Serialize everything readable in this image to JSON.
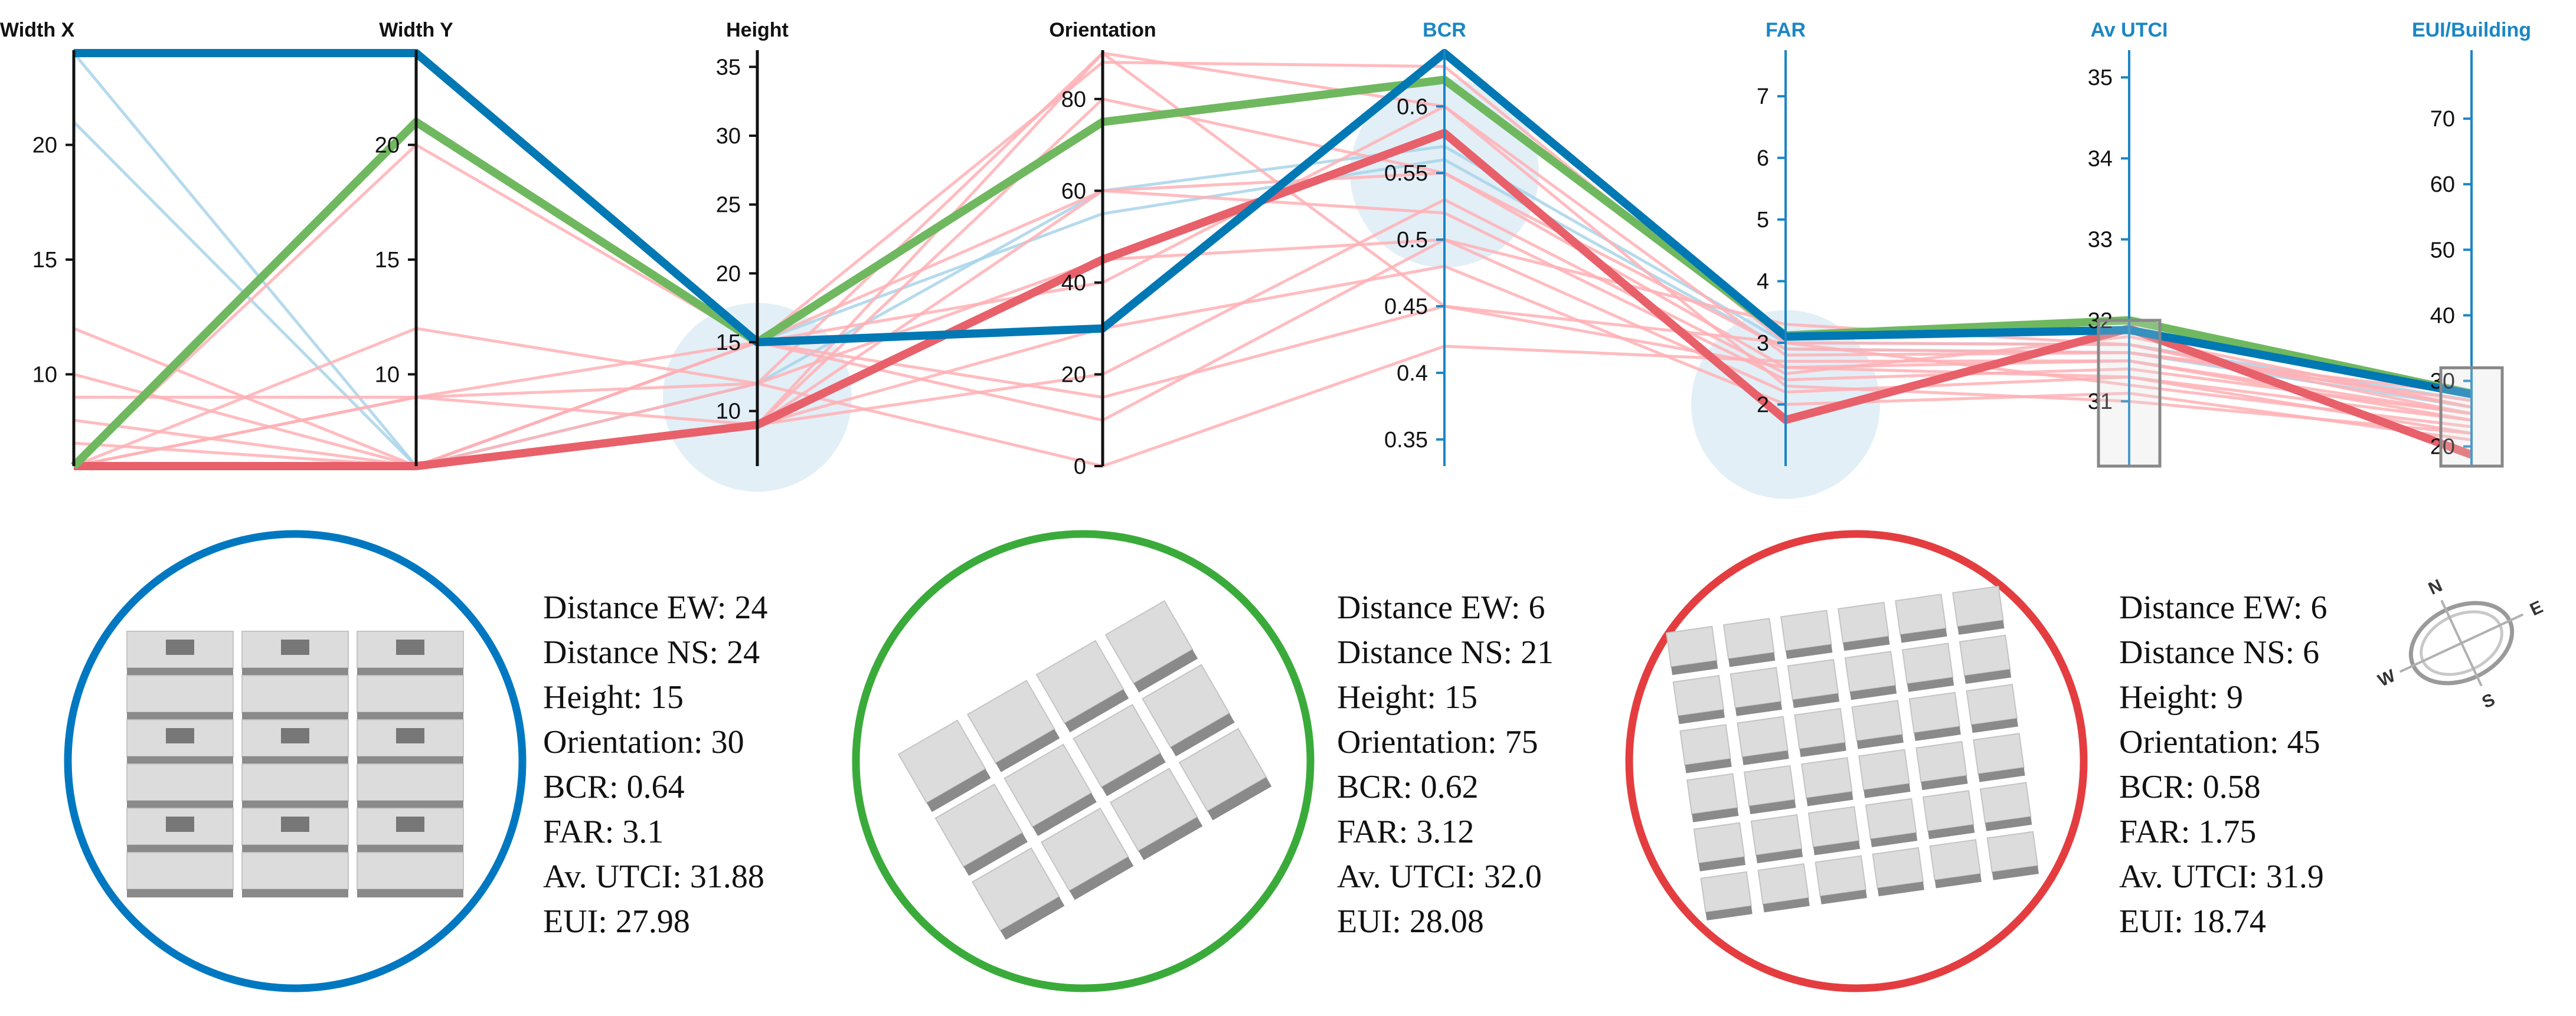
{
  "chart_data": {
    "type": "parallel-coordinates",
    "axes": [
      {
        "key": "width_x",
        "label": "Width X",
        "range": [
          6,
          24
        ],
        "ticks": [
          10,
          15,
          20
        ],
        "highlight": false
      },
      {
        "key": "width_y",
        "label": "Width Y",
        "range": [
          6,
          24
        ],
        "ticks": [
          10,
          15,
          20
        ],
        "highlight": false
      },
      {
        "key": "height",
        "label": "Height",
        "range": [
          6,
          36
        ],
        "ticks": [
          10,
          15,
          20,
          25,
          30,
          35
        ],
        "highlight": false
      },
      {
        "key": "orientation",
        "label": "Orientation",
        "range": [
          0,
          90
        ],
        "ticks": [
          0,
          20,
          40,
          60,
          80
        ],
        "highlight": false
      },
      {
        "key": "bcr",
        "label": "BCR",
        "range": [
          0.33,
          0.64
        ],
        "ticks": [
          0.35,
          0.4,
          0.45,
          0.5,
          0.55,
          0.6
        ],
        "highlight": true
      },
      {
        "key": "far",
        "label": "FAR",
        "range": [
          1,
          7.7
        ],
        "ticks": [
          2,
          3,
          4,
          5,
          6,
          7
        ],
        "highlight": true
      },
      {
        "key": "av_utci",
        "label": "Av UTCI",
        "range": [
          30.2,
          35.3
        ],
        "ticks": [
          31,
          32,
          33,
          34,
          35
        ],
        "highlight": true
      },
      {
        "key": "eui",
        "label": "EUI/Building",
        "range": [
          17,
          80
        ],
        "ticks": [
          20,
          30,
          40,
          50,
          60,
          70
        ],
        "highlight": true
      }
    ],
    "highlighted_series": [
      {
        "name": "Option 1 (blue)",
        "color": "#0078b4",
        "values": [
          24,
          24,
          15,
          30,
          0.64,
          3.1,
          31.88,
          27.98
        ]
      },
      {
        "name": "Option 2 (green)",
        "color": "#6fb85f",
        "values": [
          6,
          21,
          15,
          75,
          0.62,
          3.12,
          32.0,
          28.08
        ]
      },
      {
        "name": "Option 3 (red)",
        "color": "#e8606a",
        "values": [
          6,
          6,
          9,
          45,
          0.58,
          1.75,
          31.9,
          18.74
        ]
      }
    ],
    "background_series": [
      {
        "color": "#a8d4ea",
        "values": [
          24,
          6,
          15,
          55,
          0.56,
          2.9,
          31.6,
          26
        ]
      },
      {
        "color": "#a8d4ea",
        "values": [
          21,
          6,
          12,
          60,
          0.57,
          3.0,
          31.7,
          27
        ]
      },
      {
        "color": "#ffb0b5",
        "values": [
          6,
          20,
          15,
          88,
          0.63,
          3.0,
          31.7,
          26
        ]
      },
      {
        "color": "#ffb0b5",
        "values": [
          12,
          6,
          9,
          90,
          0.6,
          2.8,
          31.6,
          27
        ]
      },
      {
        "color": "#ffb0b5",
        "values": [
          9,
          9,
          9,
          80,
          0.55,
          2.6,
          31.5,
          24
        ]
      },
      {
        "color": "#ffb0b5",
        "values": [
          8,
          6,
          15,
          60,
          0.52,
          2.4,
          31.4,
          25
        ]
      },
      {
        "color": "#ffb0b5",
        "values": [
          6,
          9,
          12,
          45,
          0.5,
          2.2,
          31.3,
          22
        ]
      },
      {
        "color": "#ffb0b5",
        "values": [
          10,
          6,
          9,
          30,
          0.48,
          2.0,
          31.1,
          21
        ]
      },
      {
        "color": "#ffb0b5",
        "values": [
          6,
          6,
          15,
          15,
          0.45,
          3.0,
          31.2,
          23
        ]
      },
      {
        "color": "#ffb0b5",
        "values": [
          6,
          12,
          12,
          0,
          0.42,
          2.7,
          31.5,
          25
        ]
      },
      {
        "color": "#ffb0b5",
        "values": [
          7,
          6,
          9,
          20,
          0.53,
          2.5,
          31.8,
          26
        ]
      },
      {
        "color": "#ffb0b5",
        "values": [
          6,
          6,
          15,
          40,
          0.6,
          2.3,
          31.0,
          22
        ]
      },
      {
        "color": "#ffb0b5",
        "values": [
          6,
          6,
          9,
          60,
          0.55,
          2.9,
          31.6,
          28
        ]
      },
      {
        "color": "#ffb0b5",
        "values": [
          6,
          9,
          15,
          10,
          0.5,
          3.3,
          31.7,
          25
        ]
      },
      {
        "color": "#ffb0b5",
        "values": [
          6,
          6,
          12,
          90,
          0.45,
          2.6,
          31.3,
          24
        ]
      }
    ],
    "brush_circles": [
      {
        "axis": "height",
        "value": 11
      },
      {
        "axis": "bcr",
        "value": 0.55
      },
      {
        "axis": "far",
        "value": 2.0
      }
    ],
    "brush_rects": [
      {
        "axis": "av_utci",
        "range": [
          30.2,
          32.0
        ]
      },
      {
        "axis": "eui",
        "range": [
          17,
          32
        ]
      }
    ]
  },
  "options": [
    {
      "color": "#0078c1",
      "lines": [
        "Distance EW: 24",
        "Distance NS: 24",
        "Height: 15",
        "Orientation: 30",
        "BCR: 0.64",
        "FAR: 3.1",
        "Av. UTCI: 31.88",
        "EUI: 27.98"
      ]
    },
    {
      "color": "#3aab3a",
      "lines": [
        "Distance EW: 6",
        "Distance NS: 21",
        "Height: 15",
        "Orientation: 75",
        "BCR: 0.62",
        "FAR: 3.12",
        "Av. UTCI: 32.0",
        "EUI: 28.08"
      ]
    },
    {
      "color": "#e43d40",
      "lines": [
        "Distance EW: 6",
        "Distance NS: 6",
        "Height: 9",
        "Orientation: 45",
        "BCR: 0.58",
        "FAR: 1.75",
        "Av. UTCI: 31.9",
        "EUI: 18.74"
      ]
    }
  ],
  "compass": {
    "n": "N",
    "e": "E",
    "s": "S",
    "w": "W"
  },
  "colors": {
    "axis_dark": "#111111",
    "axis_highlight": "#1b86c4",
    "title_highlight": "#1b86c4",
    "brush": "#d6e8f4"
  }
}
